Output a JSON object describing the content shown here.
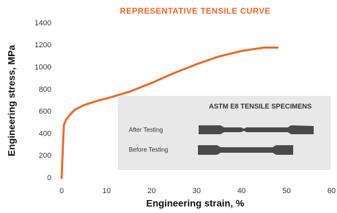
{
  "chart_data": {
    "type": "line",
    "title": "REPRESENTATIVE TENSILE CURVE",
    "x_label": "Engineering strain, %",
    "y_label": "Engineering stress, MPa",
    "series": [
      {
        "color": "#f26522",
        "x": [
          0,
          0.3,
          0.5,
          1,
          2,
          3,
          5,
          8,
          10,
          15,
          20,
          25,
          30,
          35,
          40,
          45,
          48
        ],
        "y": [
          0,
          300,
          480,
          530,
          580,
          620,
          660,
          700,
          720,
          780,
          860,
          950,
          1030,
          1100,
          1150,
          1180,
          1180
        ]
      }
    ],
    "xlim": [
      0,
      60
    ],
    "xticks": [
      0,
      10,
      20,
      30,
      40,
      50,
      60
    ],
    "ylim": [
      0,
      1400
    ],
    "yticks": [
      0,
      200,
      400,
      600,
      800,
      1000,
      1200,
      1400
    ],
    "grid": false,
    "inset_title": "ASTM E8 TENSILE SPECIMENS",
    "inset_labels": [
      "After Testing",
      "Before Testing"
    ]
  }
}
